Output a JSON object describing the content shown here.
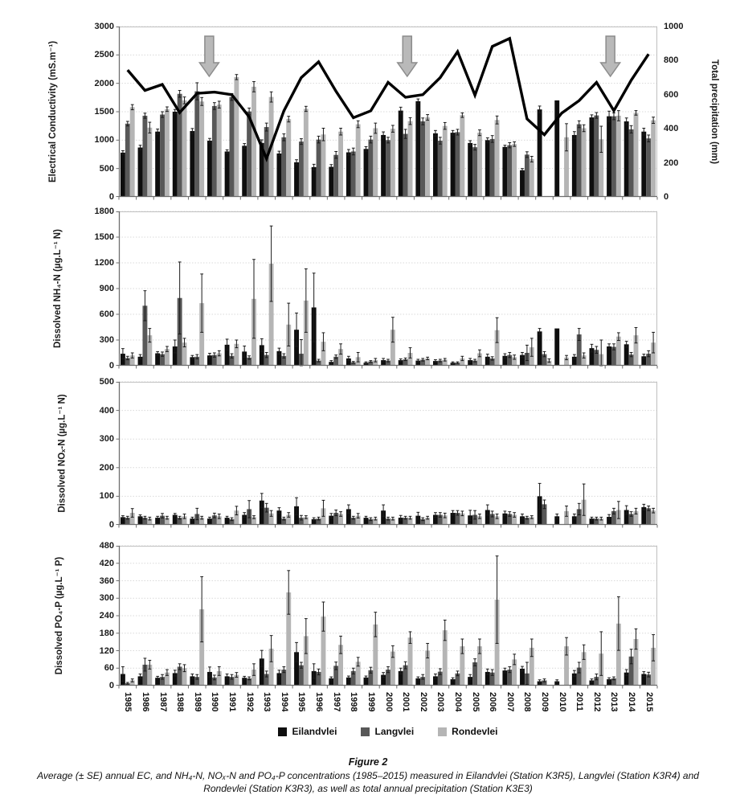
{
  "x_categories": [
    "1985",
    "1986",
    "1987",
    "1988",
    "1989",
    "1990",
    "1991",
    "1992",
    "1993",
    "1994",
    "1995",
    "1996",
    "1997",
    "1998",
    "1999",
    "2000",
    "2001",
    "2002",
    "2003",
    "2004",
    "2005",
    "2006",
    "2007",
    "2008",
    "2009",
    "2010",
    "2011",
    "2012",
    "2013",
    "2014",
    "2015"
  ],
  "series_meta": [
    {
      "label": "Eilandvlei",
      "color": "#0e0e0e"
    },
    {
      "label": "Langvlei",
      "color": "#585858"
    },
    {
      "label": "Rondevlei",
      "color": "#b5b5b5"
    }
  ],
  "style_colors": {
    "grid": "#d9d9d9",
    "panel_border": "#c0c0c0",
    "axis": "#6e6e6e",
    "error_bar": "#1a1a1a",
    "precip_line": "#000000",
    "arrow_fill": "#b9b9b9",
    "arrow_stroke": "#8c8c8c"
  },
  "chart_data": [
    {
      "id": "ec",
      "type": "bar",
      "ylabel": "Electrical Conductivity (mS.m⁻¹)",
      "ylim": [
        0,
        3000
      ],
      "yticks": [
        0,
        500,
        1000,
        1500,
        2000,
        2500,
        3000
      ],
      "series": [
        {
          "name": "Eilandvlei",
          "values": [
            780,
            870,
            1150,
            1500,
            1160,
            990,
            800,
            900,
            950,
            765,
            610,
            525,
            530,
            785,
            845,
            1090,
            1520,
            1685,
            1120,
            1130,
            950,
            1000,
            880,
            470,
            1540,
            1700,
            1090,
            1400,
            1420,
            1330,
            1150
          ],
          "se": [
            35,
            40,
            45,
            40,
            45,
            40,
            30,
            40,
            55,
            40,
            45,
            50,
            40,
            50,
            40,
            55,
            60,
            40,
            50,
            40,
            40,
            40,
            30,
            30,
            60,
            0,
            60,
            45,
            90,
            60,
            60
          ]
        },
        {
          "name": "Langvlei",
          "values": [
            1290,
            1430,
            1450,
            1815,
            1860,
            1600,
            1760,
            1505,
            1230,
            1050,
            975,
            1010,
            740,
            800,
            1010,
            1000,
            1110,
            1330,
            990,
            1140,
            875,
            1020,
            910,
            745,
            0,
            0,
            1280,
            1435,
            1420,
            1190,
            1030
          ],
          "se": [
            40,
            45,
            50,
            60,
            150,
            60,
            60,
            60,
            70,
            60,
            50,
            60,
            60,
            60,
            60,
            50,
            80,
            60,
            60,
            50,
            50,
            60,
            45,
            50,
            0,
            0,
            60,
            50,
            60,
            65,
            60
          ]
        },
        {
          "name": "Rondevlei",
          "values": [
            1580,
            1220,
            1545,
            1700,
            1680,
            1625,
            2110,
            1940,
            1760,
            1370,
            1550,
            1100,
            1150,
            1280,
            1210,
            1200,
            1335,
            1400,
            1250,
            1440,
            1130,
            1355,
            930,
            665,
            0,
            1050,
            1210,
            1015,
            1430,
            1480,
            1350
          ],
          "se": [
            45,
            95,
            40,
            60,
            70,
            60,
            45,
            90,
            90,
            50,
            45,
            110,
            60,
            60,
            90,
            60,
            60,
            50,
            60,
            40,
            50,
            70,
            40,
            50,
            0,
            240,
            60,
            230,
            90,
            40,
            55
          ]
        }
      ],
      "line": {
        "name": "Total precipitation (mm)",
        "axis": "right",
        "ylim": [
          0,
          1000
        ],
        "yticks": [
          0,
          200,
          400,
          600,
          800,
          1000
        ],
        "values": [
          745,
          625,
          660,
          495,
          608,
          615,
          600,
          470,
          225,
          505,
          700,
          793,
          620,
          465,
          505,
          672,
          585,
          600,
          700,
          853,
          597,
          883,
          930,
          458,
          365,
          492,
          565,
          672,
          506,
          685,
          838
        ]
      },
      "arrows_at_years": [
        1989.7,
        2001.1,
        2012.8
      ]
    },
    {
      "id": "nh4",
      "type": "bar",
      "ylabel": "Dissolved NH₄-N  (µg.L⁻¹ N)",
      "ylim": [
        0,
        1800
      ],
      "yticks": [
        0,
        300,
        600,
        900,
        1200,
        1500,
        1800
      ],
      "series": [
        {
          "name": "Eilandvlei",
          "values": [
            140,
            105,
            145,
            225,
            100,
            120,
            245,
            165,
            240,
            170,
            420,
            680,
            45,
            85,
            35,
            65,
            65,
            60,
            55,
            35,
            65,
            105,
            115,
            125,
            400,
            435,
            105,
            205,
            225,
            250,
            110
          ],
          "se": [
            60,
            25,
            20,
            75,
            20,
            25,
            65,
            65,
            75,
            35,
            195,
            400,
            15,
            25,
            10,
            20,
            15,
            15,
            15,
            10,
            20,
            30,
            25,
            30,
            35,
            0,
            25,
            45,
            30,
            35,
            25
          ]
        },
        {
          "name": "Langvlei",
          "values": [
            90,
            700,
            135,
            790,
            105,
            125,
            115,
            95,
            125,
            115,
            140,
            60,
            105,
            40,
            50,
            60,
            75,
            70,
            60,
            35,
            60,
            85,
            125,
            150,
            135,
            0,
            365,
            185,
            220,
            130,
            140
          ],
          "se": [
            20,
            175,
            25,
            420,
            25,
            25,
            25,
            20,
            30,
            25,
            165,
            15,
            20,
            10,
            10,
            15,
            15,
            15,
            15,
            10,
            15,
            20,
            30,
            90,
            30,
            0,
            70,
            40,
            35,
            25,
            35
          ]
        },
        {
          "name": "Rondevlei",
          "values": [
            120,
            355,
            195,
            270,
            730,
            145,
            255,
            780,
            1190,
            480,
            760,
            280,
            195,
            100,
            65,
            420,
            150,
            85,
            70,
            85,
            145,
            415,
            100,
            215,
            60,
            95,
            120,
            135,
            340,
            355,
            270
          ],
          "se": [
            30,
            80,
            30,
            50,
            340,
            30,
            45,
            460,
            440,
            250,
            370,
            105,
            60,
            55,
            20,
            145,
            60,
            15,
            15,
            25,
            40,
            145,
            25,
            105,
            20,
            25,
            30,
            165,
            45,
            90,
            120
          ]
        }
      ]
    },
    {
      "id": "nox",
      "type": "bar",
      "ylabel": "Dissolved NOₓ-N  (µg.L⁻¹ N)",
      "ylim": [
        0,
        500
      ],
      "yticks": [
        0,
        100,
        200,
        300,
        400,
        500
      ],
      "series": [
        {
          "name": "Eilandvlei",
          "values": [
            27,
            30,
            25,
            35,
            22,
            22,
            25,
            35,
            85,
            50,
            65,
            20,
            32,
            55,
            25,
            50,
            25,
            32,
            35,
            42,
            33,
            52,
            40,
            30,
            100,
            30,
            30,
            22,
            28,
            52,
            62
          ],
          "se": [
            5,
            5,
            5,
            5,
            5,
            5,
            5,
            8,
            25,
            10,
            30,
            5,
            8,
            15,
            5,
            20,
            8,
            12,
            8,
            8,
            18,
            18,
            8,
            8,
            45,
            8,
            8,
            5,
            8,
            15,
            10
          ]
        },
        {
          "name": "Langvlei",
          "values": [
            25,
            25,
            32,
            25,
            38,
            33,
            20,
            55,
            60,
            22,
            25,
            22,
            42,
            25,
            20,
            22,
            25,
            20,
            35,
            42,
            35,
            38,
            38,
            25,
            72,
            0,
            55,
            22,
            48,
            38,
            58
          ],
          "se": [
            5,
            5,
            8,
            5,
            20,
            8,
            5,
            30,
            15,
            5,
            8,
            5,
            10,
            5,
            5,
            5,
            5,
            5,
            8,
            8,
            15,
            10,
            8,
            5,
            15,
            0,
            20,
            5,
            10,
            8,
            8
          ]
        },
        {
          "name": "Rondevlei",
          "values": [
            42,
            22,
            25,
            30,
            25,
            30,
            50,
            27,
            40,
            35,
            27,
            58,
            38,
            32,
            22,
            22,
            25,
            25,
            33,
            40,
            30,
            30,
            35,
            27,
            0,
            48,
            88,
            22,
            52,
            48,
            50
          ],
          "se": [
            15,
            5,
            5,
            8,
            5,
            8,
            15,
            5,
            10,
            8,
            5,
            28,
            8,
            8,
            5,
            5,
            5,
            5,
            8,
            8,
            8,
            8,
            8,
            5,
            0,
            18,
            55,
            5,
            30,
            10,
            8
          ]
        }
      ]
    },
    {
      "id": "po4",
      "type": "bar",
      "ylabel": "Dissolved PO₄-P (µg.L⁻¹ P)",
      "ylim": [
        0,
        480
      ],
      "yticks": [
        0,
        60,
        120,
        180,
        240,
        300,
        360,
        420,
        480
      ],
      "series": [
        {
          "name": "Eilandvlei",
          "values": [
            40,
            32,
            27,
            43,
            32,
            47,
            32,
            27,
            93,
            43,
            115,
            50,
            25,
            28,
            28,
            37,
            50,
            25,
            32,
            22,
            30,
            47,
            52,
            58,
            15,
            15,
            42,
            18,
            22,
            45,
            40
          ],
          "se": [
            25,
            8,
            5,
            10,
            8,
            17,
            8,
            5,
            28,
            10,
            33,
            25,
            5,
            5,
            5,
            8,
            10,
            5,
            8,
            5,
            8,
            10,
            8,
            8,
            5,
            5,
            10,
            5,
            5,
            10,
            8
          ]
        },
        {
          "name": "Langvlei",
          "values": [
            8,
            72,
            30,
            65,
            30,
            28,
            30,
            25,
            40,
            55,
            70,
            47,
            68,
            50,
            53,
            55,
            70,
            30,
            48,
            42,
            80,
            45,
            55,
            42,
            18,
            0,
            62,
            30,
            25,
            100,
            38
          ],
          "se": [
            3,
            22,
            8,
            10,
            8,
            8,
            8,
            5,
            10,
            10,
            10,
            10,
            13,
            10,
            10,
            10,
            12,
            8,
            10,
            8,
            12,
            10,
            10,
            38,
            5,
            0,
            18,
            10,
            5,
            25,
            8
          ]
        },
        {
          "name": "Rondevlei",
          "values": [
            18,
            72,
            45,
            60,
            262,
            50,
            37,
            55,
            127,
            320,
            170,
            237,
            140,
            82,
            210,
            117,
            165,
            120,
            190,
            135,
            135,
            295,
            90,
            130,
            0,
            135,
            115,
            110,
            213,
            160,
            130
          ],
          "se": [
            5,
            15,
            10,
            12,
            112,
            15,
            8,
            20,
            45,
            75,
            60,
            50,
            30,
            15,
            42,
            20,
            20,
            25,
            35,
            25,
            25,
            150,
            18,
            30,
            0,
            30,
            25,
            75,
            92,
            35,
            45
          ]
        }
      ]
    }
  ],
  "caption": {
    "title": "Figure 2",
    "line1": "Average (± SE) annual EC, and NH₄-N, NOₓ-N and PO₄-P concentrations (1985–2015) measured in Eilandvlei (Station K3R5), Langvlei (Station K3R4) and",
    "line2": "Rondevlei (Station K3R3), as well as total annual precipitation (Station K3E3)"
  }
}
